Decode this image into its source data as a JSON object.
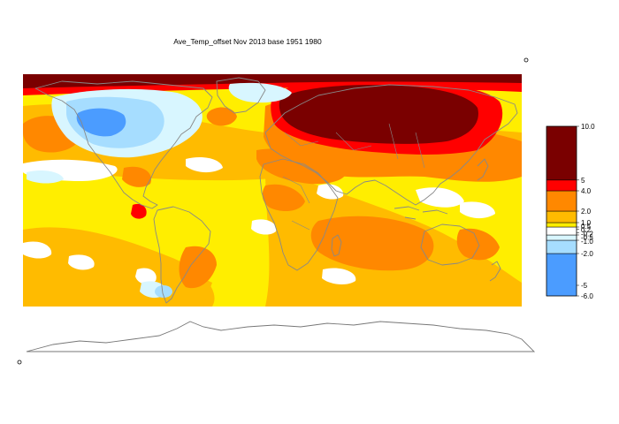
{
  "title": "Ave_Temp_offset Nov 2013  base 1951 1980",
  "colors": {
    "vhot": "#7a0000",
    "hot": "#ff0000",
    "warm": "#ff8800",
    "mild": "#ffbb00",
    "slight": "#ffee00",
    "neutral": "#ffffff",
    "cool": "#d8f6ff",
    "cold": "#a6ddff",
    "vcold": "#4b9cff",
    "coast": "#888888",
    "antarctic": "#777777"
  },
  "legend": {
    "bands": [
      {
        "from": -6.0,
        "to": -2.0,
        "color": "#4b9cff"
      },
      {
        "from": -2.0,
        "to": -1.0,
        "color": "#a6ddff"
      },
      {
        "from": -1.0,
        "to": -0.5,
        "color": "#d8f6ff"
      },
      {
        "from": -0.5,
        "to": 0.5,
        "color": "#ffffff"
      },
      {
        "from": 0.5,
        "to": 1.0,
        "color": "#ffee00"
      },
      {
        "from": 1.0,
        "to": 2.0,
        "color": "#ffbb00"
      },
      {
        "from": 2.0,
        "to": 4.0,
        "color": "#ff8800"
      },
      {
        "from": 4.0,
        "to": 5.0,
        "color": "#ff0000"
      },
      {
        "from": 5.0,
        "to": 10.0,
        "color": "#7a0000"
      }
    ],
    "ticks": [
      {
        "value": 10.0,
        "label": "10.0"
      },
      {
        "value": 5.0,
        "label": "5"
      },
      {
        "value": 4.0,
        "label": "4.0"
      },
      {
        "value": 2.0,
        "label": "2.0"
      },
      {
        "value": 1.0,
        "label": "1.0"
      },
      {
        "value": 0.5,
        "label": "0.5"
      },
      {
        "value": 0.2,
        "label": "0.2"
      },
      {
        "value": -0.2,
        "label": "-0.2"
      },
      {
        "value": -0.5,
        "label": "-0.5"
      },
      {
        "value": -1.0,
        "label": "-1.0"
      },
      {
        "value": -2.0,
        "label": "-2.0"
      },
      {
        "value": -5.0,
        "label": "-5"
      },
      {
        "value": -6.0,
        "label": "-6.0"
      }
    ]
  }
}
